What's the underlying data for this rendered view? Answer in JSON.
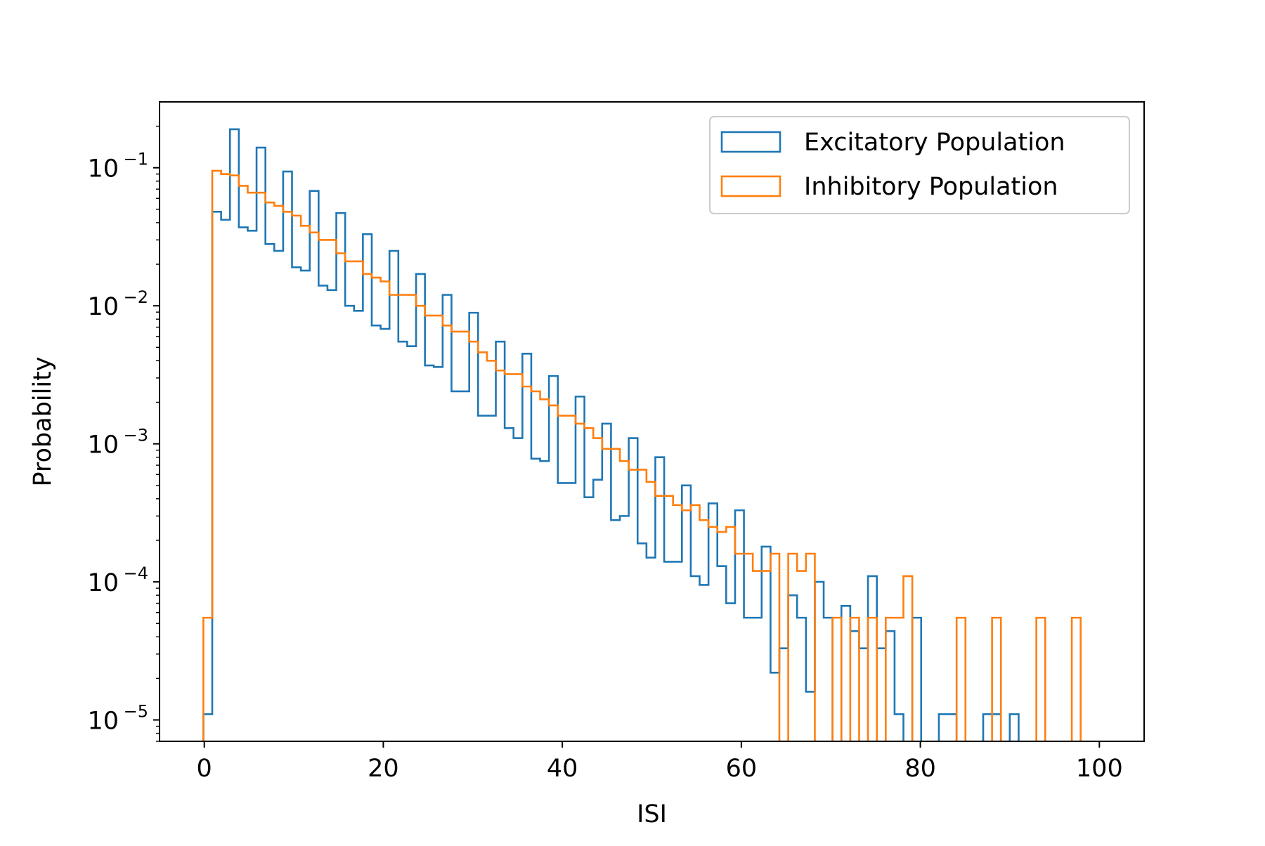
{
  "chart_data": {
    "type": "histogram-step",
    "title": "",
    "xlabel": "ISI",
    "ylabel": "Probability",
    "xscale": "linear",
    "yscale": "log",
    "xlim": [
      -5,
      105
    ],
    "ylim": [
      7e-06,
      0.3
    ],
    "xticks": [
      0,
      20,
      40,
      60,
      80,
      100
    ],
    "xtick_labels": [
      "0",
      "20",
      "40",
      "60",
      "80",
      "100"
    ],
    "yticks": [
      1e-05,
      0.0001,
      0.001,
      0.01,
      0.1
    ],
    "ytick_labels": [
      {
        "base": "10",
        "exp": "−5"
      },
      {
        "base": "10",
        "exp": "−4"
      },
      {
        "base": "10",
        "exp": "−3"
      },
      {
        "base": "10",
        "exp": "−2"
      },
      {
        "base": "10",
        "exp": "−1"
      }
    ],
    "grid": false,
    "legend_position": "upper right",
    "series": [
      {
        "name": "Excitatory Population",
        "color": "#1f77b4",
        "bin_start": -0.1,
        "bin_width": 0.99,
        "values": [
          1.1e-05,
          0.048,
          0.042,
          0.19,
          0.037,
          0.035,
          0.14,
          0.028,
          0.025,
          0.094,
          0.019,
          0.018,
          0.068,
          0.014,
          0.013,
          0.047,
          0.01,
          0.0092,
          0.033,
          0.0072,
          0.0068,
          0.025,
          0.0055,
          0.0051,
          0.017,
          0.0037,
          0.0036,
          0.012,
          0.0024,
          0.0024,
          0.0089,
          0.0016,
          0.0016,
          0.0055,
          0.0013,
          0.0011,
          0.0045,
          0.00078,
          0.00075,
          0.0031,
          0.00052,
          0.00052,
          0.0022,
          0.00041,
          0.00055,
          0.0014,
          0.00028,
          0.0003,
          0.0011,
          0.00019,
          0.00015,
          0.0008,
          0.00014,
          0.00014,
          0.0005,
          0.00011,
          9.5e-05,
          0.00037,
          0.00013,
          7e-05,
          0.00033,
          5.5e-05,
          5.5e-05,
          0.00018,
          2.2e-05,
          3.3e-05,
          8e-05,
          5.5e-05,
          1.6e-05,
          0.0001,
          5.5e-05,
          0,
          6.7e-05,
          4.4e-05,
          3.3e-05,
          0.00011,
          3.3e-05,
          4.4e-05,
          1.1e-05,
          0,
          5.5e-05,
          0,
          0,
          1.1e-05,
          1.1e-05,
          0,
          0,
          0,
          1.1e-05,
          1.1e-05,
          0,
          1.1e-05,
          0,
          0,
          0,
          0,
          0,
          0,
          0,
          0
        ]
      },
      {
        "name": "Inhibitory Population",
        "color": "#ff7f0e",
        "bin_start": -0.1,
        "bin_width": 0.99,
        "values": [
          5.5e-05,
          0.095,
          0.09,
          0.088,
          0.074,
          0.066,
          0.066,
          0.056,
          0.053,
          0.048,
          0.045,
          0.038,
          0.034,
          0.03,
          0.03,
          0.024,
          0.021,
          0.021,
          0.017,
          0.016,
          0.015,
          0.012,
          0.012,
          0.012,
          0.01,
          0.0085,
          0.0085,
          0.0072,
          0.0065,
          0.0065,
          0.0055,
          0.0046,
          0.004,
          0.0034,
          0.0032,
          0.0032,
          0.0026,
          0.0024,
          0.0021,
          0.0019,
          0.0016,
          0.0016,
          0.0014,
          0.0013,
          0.0011,
          0.00092,
          0.00092,
          0.00075,
          0.00065,
          0.00065,
          0.00053,
          0.00042,
          0.00042,
          0.00036,
          0.00033,
          0.00036,
          0.00028,
          0.00025,
          0.00023,
          0.00025,
          0.00016,
          0.00016,
          0.00012,
          0.00012,
          0.00016,
          0,
          0.00016,
          0.00012,
          0.00016,
          0,
          0,
          5.5e-05,
          0,
          5.5e-05,
          0,
          5.5e-05,
          0,
          5.5e-05,
          5.5e-05,
          0.00011,
          0,
          0,
          0,
          0,
          0,
          5.5e-05,
          0,
          0,
          0,
          5.5e-05,
          0,
          0,
          0,
          0,
          5.5e-05,
          0,
          0,
          0,
          5.5e-05,
          0,
          0
        ]
      }
    ]
  }
}
